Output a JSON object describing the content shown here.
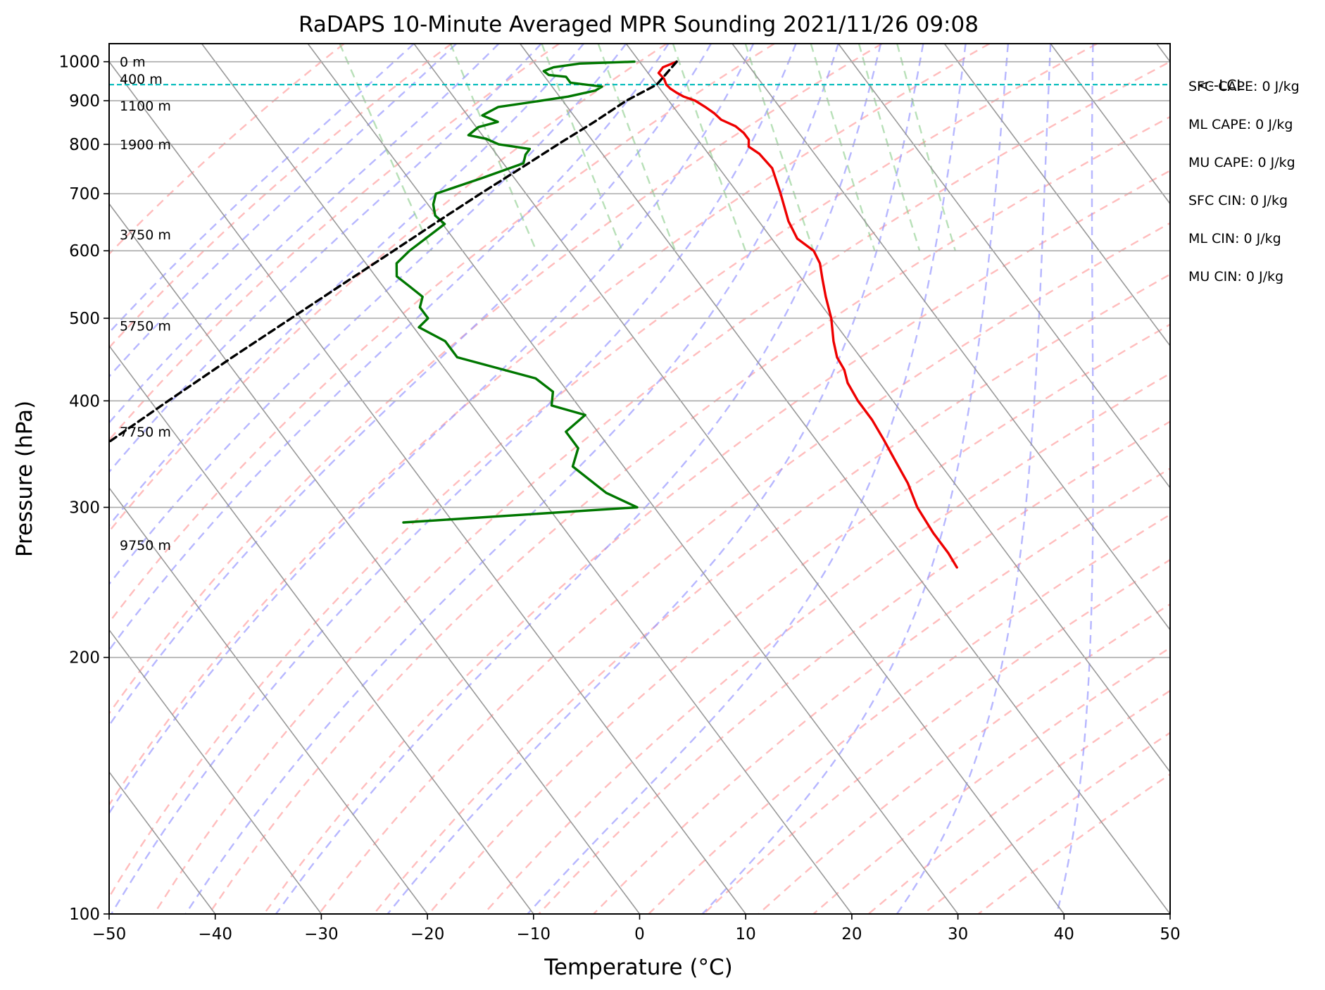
{
  "chart_data": {
    "type": "skew-t",
    "title": "RaDAPS 10-Minute Averaged MPR Sounding 2021/11/26 09:08",
    "xlabel": "Temperature (°C)",
    "ylabel": "Pressure (hPa)",
    "xlim": [
      -50,
      50
    ],
    "ylim_hpa": [
      1050,
      100
    ],
    "x_ticks": [
      -50,
      -40,
      -30,
      -20,
      -10,
      0,
      10,
      20,
      30,
      40,
      50
    ],
    "x_tick_labels": [
      "−50",
      "−40",
      "−30",
      "−20",
      "−10",
      "0",
      "10",
      "20",
      "30",
      "40",
      "50"
    ],
    "y_ticks": [
      1000,
      900,
      800,
      700,
      600,
      500,
      400,
      300,
      200,
      100
    ],
    "y_tick_labels": [
      "1000",
      "900",
      "800",
      "700",
      "600",
      "500",
      "400",
      "300",
      "200",
      "100"
    ],
    "grid": true,
    "skew_deg_per_decade": 60,
    "colors": {
      "temperature": "#ee0000",
      "dewpoint": "#007700",
      "parcel": "#000000",
      "lcl": "#00bbbb",
      "isotherm": "#999999",
      "dry_adiabat": "#ff9999",
      "moist_adiabat": "#9999ff",
      "mixing_ratio": "#88cc88"
    },
    "series": [
      {
        "name": "",
        "kind": "temperature",
        "p": [
          1000,
          985,
          970,
          955,
          940,
          930,
          920,
          910,
          900,
          885,
          870,
          855,
          840,
          825,
          810,
          795,
          780,
          750,
          700,
          650,
          620,
          600,
          580,
          555,
          530,
          500,
          470,
          450,
          435,
          420,
          400,
          380,
          360,
          345,
          320,
          300,
          280,
          265,
          255
        ],
        "values": [
          3.5,
          1.8,
          1.0,
          1.1,
          0.9,
          1.0,
          1.3,
          1.7,
          2.5,
          3.0,
          3.4,
          3.6,
          4.5,
          4.8,
          4.8,
          4.3,
          4.8,
          5.0,
          4.0,
          2.8,
          2.4,
          3.1,
          2.8,
          1.9,
          1.0,
          0.0,
          -1.4,
          -2.2,
          -2.4,
          -3.0,
          -3.3,
          -3.3,
          -3.6,
          -3.9,
          -4.4,
          -5.2,
          -5.5,
          -5.5,
          -5.7
        ]
      },
      {
        "name": "",
        "kind": "dewpoint",
        "p": [
          1000,
          995,
          985,
          975,
          965,
          960,
          945,
          935,
          925,
          910,
          895,
          885,
          865,
          850,
          838,
          820,
          812,
          800,
          790,
          778,
          760,
          730,
          700,
          680,
          660,
          645,
          600,
          580,
          560,
          545,
          530,
          515,
          500,
          488,
          470,
          450,
          425,
          410,
          395,
          385,
          368,
          352,
          335,
          312,
          300,
          288
        ],
        "values": [
          -0.5,
          -5.8,
          -8.5,
          -9.7,
          -9.5,
          -8.0,
          -8.0,
          -5.3,
          -6.2,
          -9.2,
          -13.5,
          -16.5,
          -18.6,
          -17.6,
          -19.8,
          -21.3,
          -19.9,
          -19.1,
          -16.5,
          -17.3,
          -18.1,
          -23.1,
          -28.5,
          -29.5,
          -30.1,
          -29.8,
          -35.0,
          -37.1,
          -38.0,
          -37.5,
          -37.0,
          -38.0,
          -38.0,
          -39.5,
          -38.0,
          -38.0,
          -32.1,
          -31.4,
          -32.5,
          -30.0,
          -33.0,
          -33.0,
          -34.8,
          -33.5,
          -31.6,
          -54.7
        ]
      },
      {
        "name": "",
        "kind": "parcel",
        "p": [
          1000,
          940,
          900,
          850,
          800,
          750,
          700,
          650,
          600,
          550,
          500,
          450,
          400,
          350,
          300,
          275
        ],
        "values": [
          3.5,
          0.0,
          -4.0,
          -8.5,
          -13.5,
          -18.7,
          -24.3,
          -30.2,
          -36.5,
          -43.4,
          -50.9,
          -59.2,
          -68.3,
          -78.5,
          -89.5,
          -95.5
        ]
      }
    ],
    "lcl": {
      "p": 940,
      "label": "<--LCL"
    },
    "height_labels": [
      {
        "p": 1000,
        "text": "0 m"
      },
      {
        "p": 955,
        "text": "400 m"
      },
      {
        "p": 888,
        "text": "1100 m"
      },
      {
        "p": 800,
        "text": "1900 m"
      },
      {
        "p": 627,
        "text": "3750 m"
      },
      {
        "p": 490,
        "text": "5750 m"
      },
      {
        "p": 368,
        "text": "7750 m"
      },
      {
        "p": 271,
        "text": "9750 m"
      }
    ],
    "indices": [
      "SFC CAPE: 0 J/kg",
      "ML CAPE: 0 J/kg",
      "MU CAPE: 0 J/kg",
      "SFC CIN: 0 J/kg",
      "ML CIN: 0 J/kg",
      "MU CIN: 0 J/kg"
    ]
  }
}
